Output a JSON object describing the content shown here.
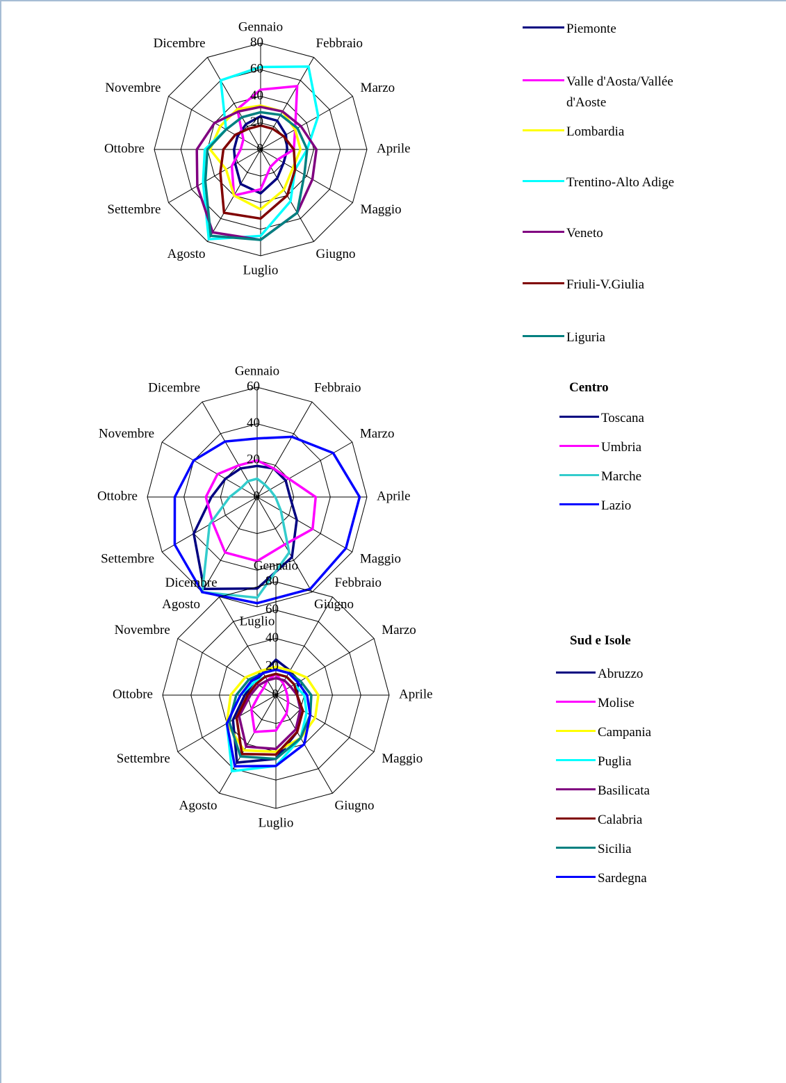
{
  "chart_data": [
    {
      "type": "radar",
      "categories": [
        "Gennaio",
        "Febbraio",
        "Marzo",
        "Aprile",
        "Maggio",
        "Giugno",
        "Luglio",
        "Agosto",
        "Settembre",
        "Ottobre",
        "Novembre",
        "Dicembre"
      ],
      "rlim": [
        0,
        80
      ],
      "rticks": [
        0,
        20,
        40,
        60,
        80
      ],
      "series": [
        {
          "name": "Piemonte",
          "color": "#000080",
          "values": [
            25,
            25,
            22,
            20,
            20,
            25,
            33,
            30,
            22,
            20,
            20,
            22
          ]
        },
        {
          "name": "Valle d'Aosta/Vallée d'Aoste",
          "color": "#ff00ff",
          "values": [
            45,
            55,
            30,
            25,
            15,
            15,
            30,
            40,
            25,
            15,
            15,
            35
          ]
        },
        {
          "name": "Lombardia",
          "color": "#ffff00",
          "values": [
            33,
            33,
            30,
            30,
            28,
            35,
            45,
            40,
            30,
            38,
            35,
            35
          ]
        },
        {
          "name": "Trentino-Alto Adige",
          "color": "#00ffff",
          "values": [
            62,
            72,
            50,
            35,
            30,
            45,
            65,
            78,
            50,
            42,
            30,
            60
          ]
        },
        {
          "name": "Veneto",
          "color": "#800080",
          "values": [
            32,
            33,
            35,
            42,
            45,
            55,
            68,
            72,
            55,
            48,
            40,
            33
          ]
        },
        {
          "name": "Friuli-V.Giulia",
          "color": "#800000",
          "values": [
            18,
            18,
            20,
            25,
            30,
            40,
            52,
            55,
            35,
            28,
            22,
            18
          ]
        },
        {
          "name": "Liguria",
          "color": "#008080",
          "values": [
            28,
            30,
            32,
            35,
            38,
            55,
            68,
            75,
            48,
            40,
            30,
            28
          ]
        }
      ]
    },
    {
      "type": "radar",
      "legend_title": "Centro",
      "categories": [
        "Gennaio",
        "Febbraio",
        "Marzo",
        "Aprile",
        "Maggio",
        "Giugno",
        "Luglio",
        "Agosto",
        "Settembre",
        "Ottobre",
        "Novembre",
        "Dicembre"
      ],
      "rlim": [
        0,
        60
      ],
      "rticks": [
        0,
        20,
        40,
        60
      ],
      "series": [
        {
          "name": "Toscana",
          "color": "#000080",
          "values": [
            17,
            18,
            18,
            18,
            25,
            38,
            50,
            58,
            40,
            25,
            20,
            18
          ]
        },
        {
          "name": "Umbria",
          "color": "#ff00ff",
          "values": [
            20,
            18,
            20,
            32,
            35,
            30,
            35,
            35,
            28,
            28,
            25,
            20
          ]
        },
        {
          "name": "Marche",
          "color": "#33cccc",
          "values": [
            10,
            8,
            8,
            10,
            15,
            35,
            55,
            60,
            30,
            15,
            10,
            10
          ]
        },
        {
          "name": "Lazio",
          "color": "#0000ff",
          "values": [
            32,
            38,
            48,
            56,
            56,
            58,
            58,
            60,
            52,
            45,
            40,
            35
          ]
        }
      ]
    },
    {
      "type": "radar",
      "legend_title": "Sud e Isole",
      "categories": [
        "Gennaio",
        "Febbraio",
        "Marzo",
        "Aprile",
        "Maggio",
        "Giugno",
        "Luglio",
        "Agosto",
        "Settembre",
        "Ottobre",
        "Novembre",
        "Dicembre"
      ],
      "rlim": [
        0,
        80
      ],
      "rticks": [
        0,
        20,
        40,
        60,
        80
      ],
      "series": [
        {
          "name": "Abruzzo",
          "color": "#000080",
          "values": [
            25,
            20,
            18,
            15,
            20,
            30,
            45,
            55,
            35,
            22,
            18,
            18
          ]
        },
        {
          "name": "Molise",
          "color": "#ff00ff",
          "values": [
            15,
            10,
            8,
            8,
            10,
            15,
            25,
            30,
            20,
            12,
            10,
            12
          ]
        },
        {
          "name": "Campania",
          "color": "#ffff00",
          "values": [
            20,
            20,
            25,
            30,
            32,
            35,
            40,
            45,
            40,
            32,
            25,
            20
          ]
        },
        {
          "name": "Puglia",
          "color": "#00ffff",
          "values": [
            15,
            15,
            15,
            20,
            25,
            35,
            50,
            62,
            40,
            25,
            18,
            15
          ]
        },
        {
          "name": "Basilicata",
          "color": "#800080",
          "values": [
            12,
            12,
            12,
            15,
            20,
            28,
            38,
            42,
            30,
            18,
            14,
            12
          ]
        },
        {
          "name": "Calabria",
          "color": "#800000",
          "values": [
            15,
            15,
            15,
            15,
            22,
            30,
            42,
            48,
            32,
            20,
            16,
            15
          ]
        },
        {
          "name": "Sicilia",
          "color": "#008080",
          "values": [
            18,
            18,
            20,
            25,
            28,
            35,
            45,
            50,
            38,
            28,
            22,
            18
          ]
        },
        {
          "name": "Sardegna",
          "color": "#0000ff",
          "values": [
            18,
            18,
            18,
            22,
            28,
            40,
            50,
            58,
            40,
            25,
            20,
            18
          ]
        }
      ]
    }
  ]
}
